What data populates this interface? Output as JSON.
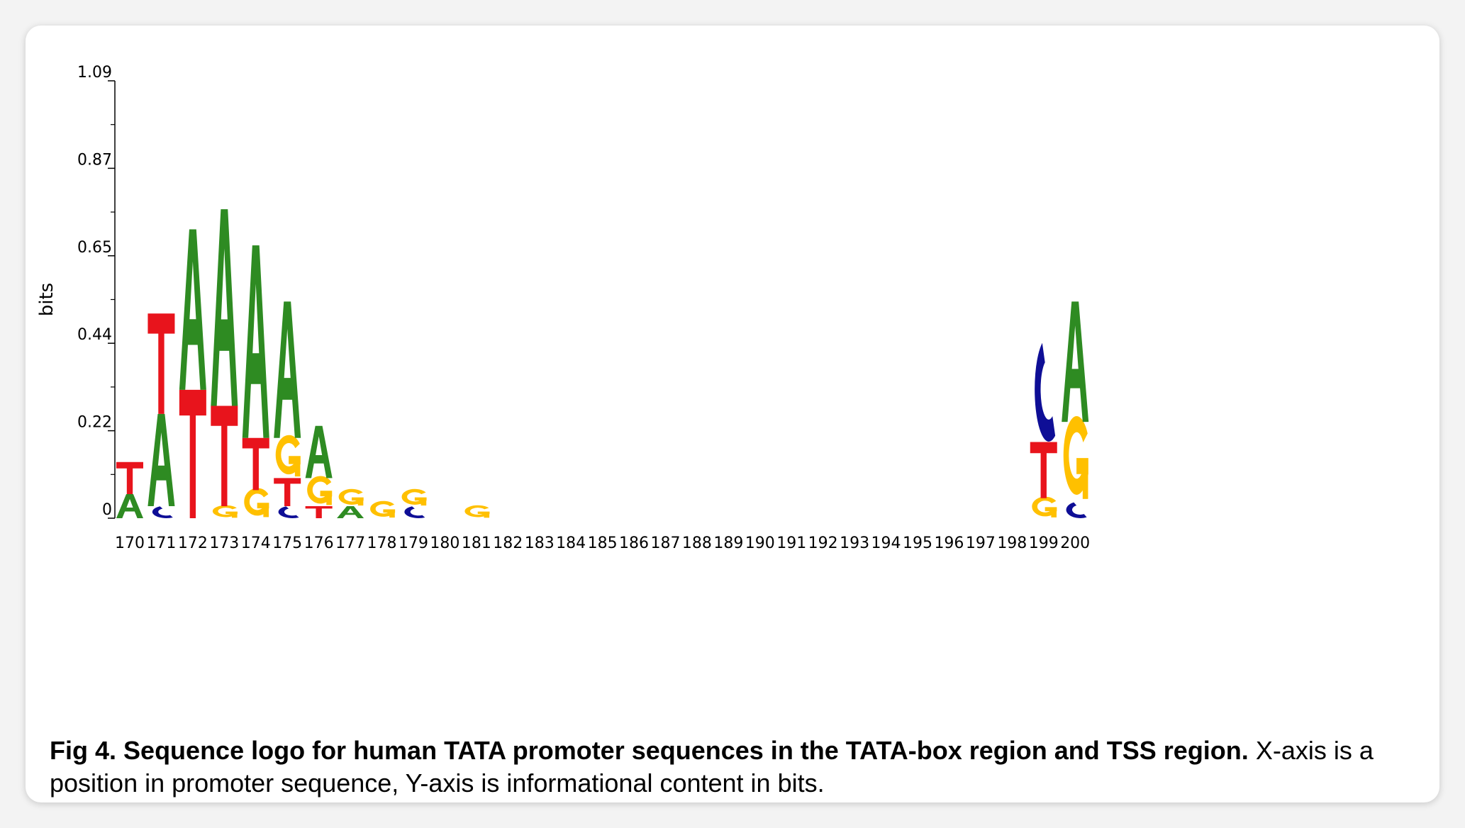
{
  "figure": {
    "caption_label": "Fig 4.",
    "caption_title": "Sequence logo for human TATA promoter sequences in the TATA-box region and TSS region.",
    "caption_text": "X-axis is a position in promoter sequence, Y-axis is informational content in bits."
  },
  "chart_data": {
    "type": "sequence-logo",
    "ylabel": "bits",
    "ylim": [
      0,
      1.09
    ],
    "yticks": [
      "0",
      "0.22",
      "0.44",
      "0.65",
      "0.87",
      "1.09"
    ],
    "xlabel": "",
    "colors": {
      "A": "#2e8b22",
      "C": "#0e0e96",
      "G": "#ffc000",
      "T": "#e8141c"
    },
    "positions": [
      {
        "pos": "170",
        "letters": [
          {
            "base": "A",
            "bits": 0.06
          },
          {
            "base": "T",
            "bits": 0.08
          }
        ]
      },
      {
        "pos": "171",
        "letters": [
          {
            "base": "C",
            "bits": 0.03
          },
          {
            "base": "A",
            "bits": 0.23
          },
          {
            "base": "T",
            "bits": 0.25
          }
        ]
      },
      {
        "pos": "172",
        "letters": [
          {
            "base": "T",
            "bits": 0.32
          },
          {
            "base": "A",
            "bits": 0.4
          }
        ]
      },
      {
        "pos": "173",
        "letters": [
          {
            "base": "G",
            "bits": 0.03
          },
          {
            "base": "T",
            "bits": 0.25
          },
          {
            "base": "A",
            "bits": 0.49
          }
        ]
      },
      {
        "pos": "174",
        "letters": [
          {
            "base": "G",
            "bits": 0.07
          },
          {
            "base": "T",
            "bits": 0.13
          },
          {
            "base": "A",
            "bits": 0.48
          }
        ]
      },
      {
        "pos": "175",
        "letters": [
          {
            "base": "C",
            "bits": 0.03
          },
          {
            "base": "T",
            "bits": 0.07
          },
          {
            "base": "G",
            "bits": 0.1
          },
          {
            "base": "A",
            "bits": 0.34
          }
        ]
      },
      {
        "pos": "176",
        "letters": [
          {
            "base": "T",
            "bits": 0.03
          },
          {
            "base": "G",
            "bits": 0.07
          },
          {
            "base": "A",
            "bits": 0.13
          }
        ]
      },
      {
        "pos": "177",
        "letters": [
          {
            "base": "A",
            "bits": 0.03
          },
          {
            "base": "G",
            "bits": 0.04
          }
        ]
      },
      {
        "pos": "178",
        "letters": [
          {
            "base": "G",
            "bits": 0.04
          }
        ]
      },
      {
        "pos": "179",
        "letters": [
          {
            "base": "C",
            "bits": 0.03
          },
          {
            "base": "G",
            "bits": 0.04
          }
        ]
      },
      {
        "pos": "180",
        "letters": []
      },
      {
        "pos": "181",
        "letters": [
          {
            "base": "G",
            "bits": 0.03
          }
        ]
      },
      {
        "pos": "182",
        "letters": []
      },
      {
        "pos": "183",
        "letters": []
      },
      {
        "pos": "184",
        "letters": []
      },
      {
        "pos": "185",
        "letters": []
      },
      {
        "pos": "186",
        "letters": []
      },
      {
        "pos": "187",
        "letters": []
      },
      {
        "pos": "188",
        "letters": []
      },
      {
        "pos": "189",
        "letters": []
      },
      {
        "pos": "190",
        "letters": []
      },
      {
        "pos": "191",
        "letters": []
      },
      {
        "pos": "192",
        "letters": []
      },
      {
        "pos": "193",
        "letters": []
      },
      {
        "pos": "194",
        "letters": []
      },
      {
        "pos": "195",
        "letters": []
      },
      {
        "pos": "196",
        "letters": []
      },
      {
        "pos": "197",
        "letters": []
      },
      {
        "pos": "198",
        "letters": []
      },
      {
        "pos": "199",
        "letters": [
          {
            "base": "G",
            "bits": 0.05
          },
          {
            "base": "T",
            "bits": 0.14
          },
          {
            "base": "C",
            "bits": 0.25
          }
        ]
      },
      {
        "pos": "200",
        "letters": [
          {
            "base": "C",
            "bits": 0.04
          },
          {
            "base": "G",
            "bits": 0.2
          },
          {
            "base": "A",
            "bits": 0.3
          }
        ]
      }
    ]
  }
}
